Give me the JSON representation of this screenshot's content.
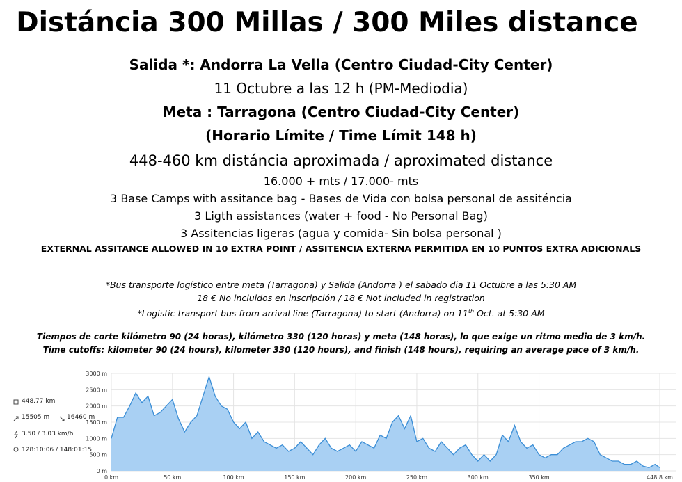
{
  "header": {
    "title": "Distáncia 300 Millas / 300 Miles distance"
  },
  "lines": [
    {
      "text": "Salida *: Andorra La Vella (Centro Ciudad-City Center)",
      "style": "bold"
    },
    {
      "text": "11 Octubre a las 12 h (PM-Mediodia)",
      "style": "normal"
    },
    {
      "text": "Meta : Tarragona (Centro Ciudad-City Center)",
      "style": "bold"
    },
    {
      "text": "(Horario Límite / Time Límit  148 h)",
      "style": "bold"
    },
    {
      "text": "448-460 km distáncia aproximada / aproximated distance",
      "style": "large"
    },
    {
      "text": "16.000 + mts / 17.000- mts",
      "style": "small"
    },
    {
      "text": "3 Base Camps with assitance bag - Bases de Vida con bolsa personal de assiténcia",
      "style": "small"
    },
    {
      "text": "3 Ligth assistances (water + food - No Personal Bag)",
      "style": "small"
    },
    {
      "text": "3 Assitencias ligeras (agua y comida- Sin bolsa personal )",
      "style": "small"
    },
    {
      "text": "EXTERNAL ASSITANCE ALLOWED IN 10 EXTRA POINT / ASSITENCIA EXTERNA PERMITIDA EN 10 PUNTOS EXTRA ADICIONALS",
      "style": "caps"
    }
  ],
  "notes": {
    "bus_es": "*Bus transporte logístico entre meta (Tarragona) y Salida (Andorra ) el sabado dia 11 Octubre a las 5:30 AM",
    "price": "18 € No incluidos en inscripción / 18 € Not included in registration",
    "bus_en_a": "*Logistic transport bus from arrival line (Tarragona)  to start  (Andorra) on 11",
    "bus_en_sup": "th",
    "bus_en_b": " Oct. at 5:30 AM"
  },
  "cutoffs": [
    "Tiempos de corte kilómetro 90 (24 horas), kilómetro 330 (120 horas) y meta (148 horas), lo que exige un ritmo medio de 3 km/h.",
    "Time cutoffs: kilometer 90 (24 hours), kilometer 330 (120 hours), and finish (148 hours), requiring an average pace of 3 km/h."
  ],
  "stats": {
    "distance": "448.77 km",
    "ascent": "15505 m",
    "descent": "16460 m",
    "speed": "3.50 / 3.03 km/h",
    "time": "128:10:06 / 148:01:15"
  },
  "chart_data": {
    "type": "area",
    "color": "#3b8ed6",
    "fill": "#a9d0f3",
    "grid": true,
    "x": [
      0,
      5,
      10,
      15,
      20,
      25,
      30,
      35,
      40,
      45,
      50,
      55,
      60,
      65,
      70,
      75,
      80,
      85,
      90,
      95,
      100,
      105,
      110,
      115,
      120,
      125,
      130,
      135,
      140,
      145,
      150,
      155,
      160,
      165,
      170,
      175,
      180,
      185,
      190,
      195,
      200,
      205,
      210,
      215,
      220,
      225,
      230,
      235,
      240,
      245,
      250,
      255,
      260,
      265,
      270,
      275,
      280,
      285,
      290,
      295,
      300,
      305,
      310,
      315,
      320,
      325,
      330,
      335,
      340,
      345,
      350,
      355,
      360,
      365,
      370,
      375,
      380,
      385,
      390,
      395,
      400,
      405,
      410,
      415,
      420,
      425,
      430,
      435,
      440,
      445,
      448.8
    ],
    "values": [
      1000,
      1650,
      1650,
      2000,
      2400,
      2100,
      2300,
      1700,
      1800,
      2000,
      2200,
      1600,
      1200,
      1500,
      1700,
      2300,
      2900,
      2300,
      2000,
      1900,
      1500,
      1300,
      1500,
      1000,
      1200,
      900,
      800,
      700,
      800,
      600,
      700,
      900,
      700,
      500,
      800,
      1000,
      700,
      600,
      700,
      800,
      600,
      900,
      800,
      700,
      1100,
      1000,
      1500,
      1700,
      1300,
      1700,
      900,
      1000,
      700,
      600,
      900,
      700,
      500,
      700,
      800,
      500,
      300,
      500,
      300,
      500,
      1100,
      900,
      1400,
      900,
      700,
      800,
      500,
      400,
      500,
      500,
      700,
      800,
      900,
      900,
      1000,
      900,
      500,
      400,
      300,
      300,
      200,
      200,
      300,
      150,
      100,
      200,
      100
    ],
    "xlim": [
      0,
      448.8
    ],
    "xticks": [
      {
        "value": 0,
        "label": "0 km"
      },
      {
        "value": 50,
        "label": "50 km"
      },
      {
        "value": 100,
        "label": "100 km"
      },
      {
        "value": 150,
        "label": "150 km"
      },
      {
        "value": 200,
        "label": "200 km"
      },
      {
        "value": 250,
        "label": "250 km"
      },
      {
        "value": 300,
        "label": "300 km"
      },
      {
        "value": 350,
        "label": "350 km"
      },
      {
        "value": 448.8,
        "label": "448.8 km"
      }
    ],
    "ylim": [
      0,
      3000
    ],
    "yticks": [
      {
        "value": 0,
        "label": "0 m"
      },
      {
        "value": 500,
        "label": "500 m"
      },
      {
        "value": 1000,
        "label": "1000 m"
      },
      {
        "value": 1500,
        "label": "1500 m"
      },
      {
        "value": 2000,
        "label": "2000 m"
      },
      {
        "value": 2500,
        "label": "2500 m"
      },
      {
        "value": 3000,
        "label": "3000 m"
      }
    ]
  }
}
